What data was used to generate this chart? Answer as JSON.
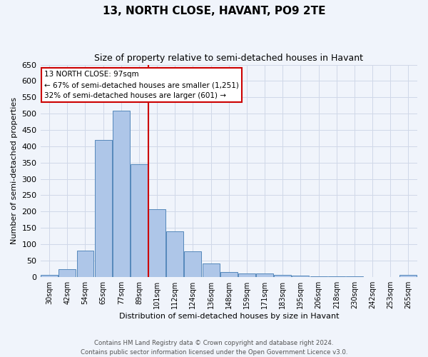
{
  "title": "13, NORTH CLOSE, HAVANT, PO9 2TE",
  "subtitle": "Size of property relative to semi-detached houses in Havant",
  "xlabel": "Distribution of semi-detached houses by size in Havant",
  "ylabel": "Number of semi-detached properties",
  "footer": "Contains HM Land Registry data © Crown copyright and database right 2024.\nContains public sector information licensed under the Open Government Licence v3.0.",
  "bin_labels": [
    "30sqm",
    "42sqm",
    "54sqm",
    "65sqm",
    "77sqm",
    "89sqm",
    "101sqm",
    "112sqm",
    "124sqm",
    "136sqm",
    "148sqm",
    "159sqm",
    "171sqm",
    "183sqm",
    "195sqm",
    "206sqm",
    "218sqm",
    "230sqm",
    "242sqm",
    "253sqm",
    "265sqm"
  ],
  "bin_values": [
    5,
    24,
    80,
    420,
    510,
    345,
    207,
    140,
    78,
    42,
    14,
    11,
    10,
    5,
    3,
    2,
    1,
    1,
    0,
    0,
    5
  ],
  "bar_color": "#aec6e8",
  "bar_edge_color": "#5588bb",
  "vline_x": 5.5,
  "vline_color": "#cc0000",
  "annotation_title": "13 NORTH CLOSE: 97sqm",
  "annotation_line1": "← 67% of semi-detached houses are smaller (1,251)",
  "annotation_line2": "32% of semi-detached houses are larger (601) →",
  "annotation_box_color": "#ffffff",
  "annotation_box_edge": "#cc0000",
  "ylim": [
    0,
    650
  ],
  "yticks": [
    0,
    50,
    100,
    150,
    200,
    250,
    300,
    350,
    400,
    450,
    500,
    550,
    600,
    650
  ],
  "grid_color": "#d0d8e8",
  "background_color": "#f0f4fb"
}
